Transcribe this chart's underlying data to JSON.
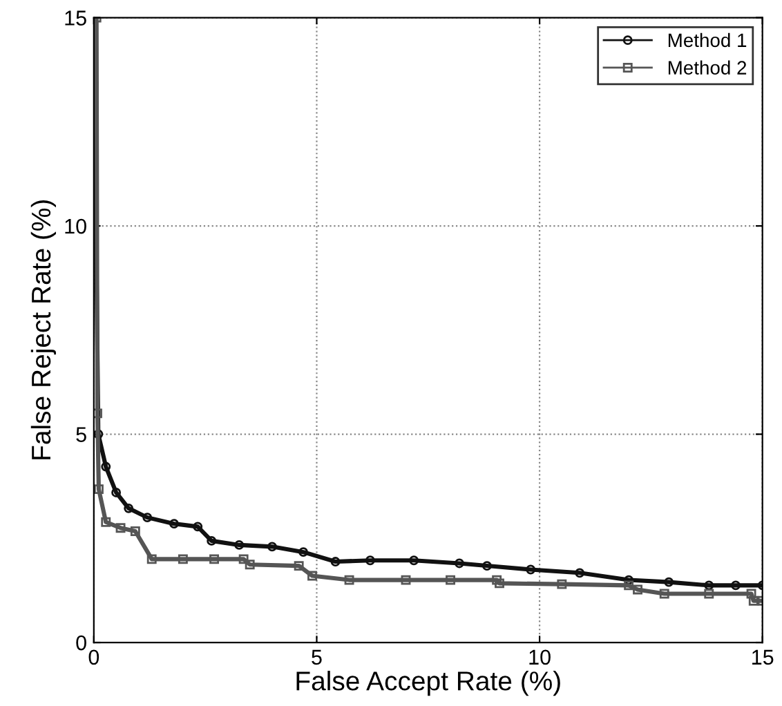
{
  "chart_data": {
    "type": "line",
    "xlabel": "False Accept Rate (%)",
    "ylabel": "False Reject Rate (%)",
    "xlim": [
      0,
      15
    ],
    "ylim": [
      0,
      15
    ],
    "xticks": [
      0,
      5,
      10,
      15
    ],
    "yticks": [
      0,
      5,
      10,
      15
    ],
    "grid": true,
    "legend": "top right",
    "line_style": "solid",
    "series": [
      {
        "name": "Method 1",
        "color": "#111111",
        "marker": "circle",
        "x": [
          0,
          0.1,
          0.27,
          0.5,
          0.78,
          1.2,
          1.8,
          2.33,
          2.64,
          3.26,
          4.0,
          4.7,
          5.42,
          6.2,
          7.18,
          8.2,
          8.82,
          9.8,
          10.9,
          12.0,
          12.9,
          13.8,
          14.4,
          15
        ],
        "values": [
          15,
          5,
          4.22,
          3.6,
          3.22,
          3.0,
          2.85,
          2.78,
          2.44,
          2.34,
          2.3,
          2.17,
          1.94,
          1.97,
          1.97,
          1.9,
          1.84,
          1.75,
          1.67,
          1.5,
          1.45,
          1.37,
          1.37,
          1.37
        ]
      },
      {
        "name": "Method 2",
        "color": "#555555",
        "marker": "square",
        "x": [
          0.06,
          0.08,
          0.11,
          0.27,
          0.6,
          0.93,
          1.3,
          2.0,
          2.7,
          3.36,
          3.5,
          4.6,
          4.9,
          5.73,
          7.0,
          8.0,
          9.04,
          9.1,
          10.5,
          12.0,
          12.2,
          12.8,
          13.8,
          14.75,
          14.8,
          15
        ],
        "values": [
          15,
          5.5,
          3.68,
          2.89,
          2.75,
          2.67,
          2.0,
          2.0,
          2.0,
          2.0,
          1.87,
          1.84,
          1.6,
          1.5,
          1.5,
          1.5,
          1.5,
          1.42,
          1.4,
          1.37,
          1.27,
          1.17,
          1.17,
          1.17,
          1.0,
          1.0
        ]
      }
    ]
  }
}
